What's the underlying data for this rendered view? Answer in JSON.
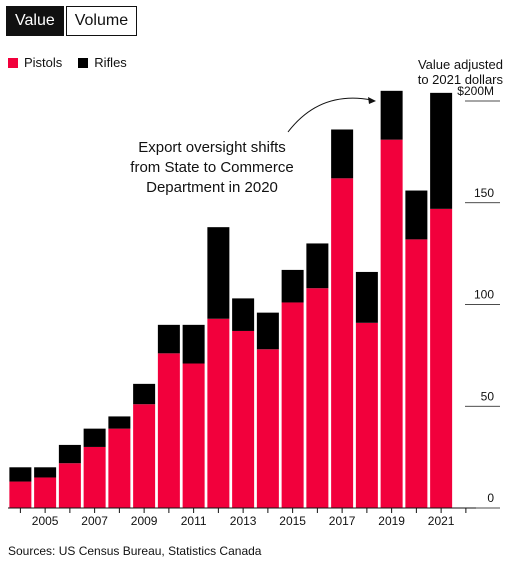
{
  "toggle": {
    "value_label": "Value",
    "volume_label": "Volume"
  },
  "legend": [
    {
      "label": "Pistols",
      "color": "#f2003c"
    },
    {
      "label": "Rifles",
      "color": "#000000"
    }
  ],
  "note": {
    "line1": "Value adjusted",
    "line2": "to 2021 dollars"
  },
  "annotation": {
    "lines": [
      "Export oversight shifts",
      "from State to Commerce",
      "Department in 2020"
    ]
  },
  "source": "Sources: US Census Bureau, Statistics Canada",
  "chart_data": {
    "type": "bar",
    "stacked": true,
    "x": [
      2004,
      2005,
      2006,
      2007,
      2008,
      2009,
      2010,
      2011,
      2012,
      2013,
      2014,
      2015,
      2016,
      2017,
      2018,
      2019,
      2020,
      2021,
      2022
    ],
    "x_tick_labels": [
      "2005",
      "2007",
      "2009",
      "2011",
      "2013",
      "2015",
      "2017",
      "2019",
      "2021"
    ],
    "x_tick_values": [
      2005,
      2007,
      2009,
      2011,
      2013,
      2015,
      2017,
      2019,
      2021
    ],
    "series": [
      {
        "name": "Pistols",
        "color": "#f2003c",
        "values": [
          13,
          15,
          22,
          30,
          39,
          51,
          76,
          71,
          93,
          87,
          78,
          101,
          108,
          162,
          91,
          181,
          132,
          147,
          0
        ]
      },
      {
        "name": "Rifles",
        "color": "#000000",
        "values": [
          7,
          5,
          9,
          9,
          6,
          10,
          14,
          19,
          45,
          16,
          18,
          16,
          22,
          24,
          25,
          24,
          24,
          57,
          0
        ]
      }
    ],
    "y_ticks": [
      0,
      50,
      100,
      150,
      200
    ],
    "y_tick_labels": [
      "0",
      "50",
      "100",
      "150",
      "$200M"
    ],
    "ylim": [
      0,
      200
    ],
    "legend_position": "top-left"
  }
}
